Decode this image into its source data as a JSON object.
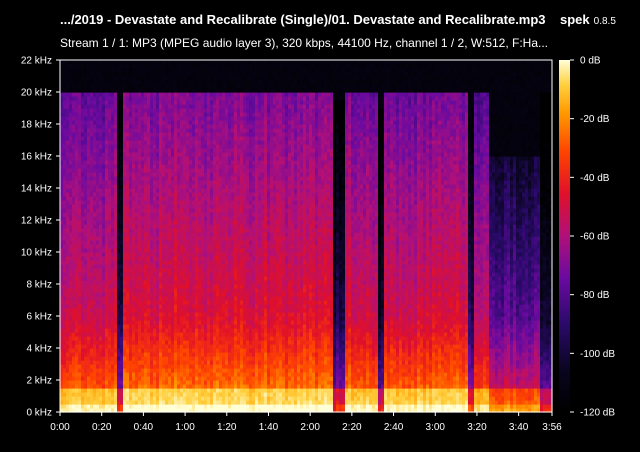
{
  "header": {
    "title": ".../2019 - Devastate and Recalibrate (Single)/01. Devastate and Recalibrate.mp3",
    "app_name": "spek",
    "app_version": "0.8.5",
    "stream_info": "Stream 1 / 1: MP3 (MPEG audio layer 3), 320 kbps, 44100 Hz, channel 1 / 2, W:512, F:Ha..."
  },
  "colors": {
    "background": "#000000",
    "text": "#ffffff",
    "palette": [
      "#000000",
      "#0a0520",
      "#2a0a6a",
      "#6a0aa0",
      "#b0107a",
      "#e0102a",
      "#ff4400",
      "#ff9a00",
      "#ffd040",
      "#ffffd8"
    ]
  },
  "chart_data": {
    "type": "heatmap",
    "title": "",
    "x_ticks": [
      "0:00",
      "0:20",
      "0:40",
      "1:00",
      "1:20",
      "1:40",
      "2:00",
      "2:20",
      "2:40",
      "3:00",
      "3:20",
      "3:40",
      "3:56"
    ],
    "y_ticks": [
      "0 kHz",
      "2 kHz",
      "4 kHz",
      "6 kHz",
      "8 kHz",
      "10 kHz",
      "12 kHz",
      "14 kHz",
      "16 kHz",
      "18 kHz",
      "20 kHz",
      "22 kHz"
    ],
    "colorbar_ticks": [
      "0 dB",
      "-20 dB",
      "-40 dB",
      "-60 dB",
      "-80 dB",
      "-100 dB",
      "-120 dB"
    ],
    "xlim_seconds": [
      0,
      236
    ],
    "ylim_khz": [
      0,
      22
    ],
    "dB_range": [
      -120,
      0
    ],
    "sections": [
      {
        "start": 0,
        "end": 28,
        "cutoff_khz": 20.0,
        "level": 0.58
      },
      {
        "start": 28,
        "end": 30,
        "cutoff_khz": 19.5,
        "level": 0.22
      },
      {
        "start": 30,
        "end": 131,
        "cutoff_khz": 20.0,
        "level": 0.62
      },
      {
        "start": 131,
        "end": 136,
        "cutoff_khz": 19.5,
        "level": 0.24
      },
      {
        "start": 136,
        "end": 152,
        "cutoff_khz": 20.0,
        "level": 0.6
      },
      {
        "start": 152,
        "end": 156,
        "cutoff_khz": 19.0,
        "level": 0.2
      },
      {
        "start": 156,
        "end": 195,
        "cutoff_khz": 20.0,
        "level": 0.6
      },
      {
        "start": 195,
        "end": 198,
        "cutoff_khz": 19.0,
        "level": 0.26
      },
      {
        "start": 198,
        "end": 206,
        "cutoff_khz": 20.0,
        "level": 0.55
      },
      {
        "start": 206,
        "end": 230,
        "cutoff_khz": 16.0,
        "level": 0.4
      },
      {
        "start": 230,
        "end": 236,
        "cutoff_khz": 20.0,
        "level": 0.22
      }
    ]
  }
}
